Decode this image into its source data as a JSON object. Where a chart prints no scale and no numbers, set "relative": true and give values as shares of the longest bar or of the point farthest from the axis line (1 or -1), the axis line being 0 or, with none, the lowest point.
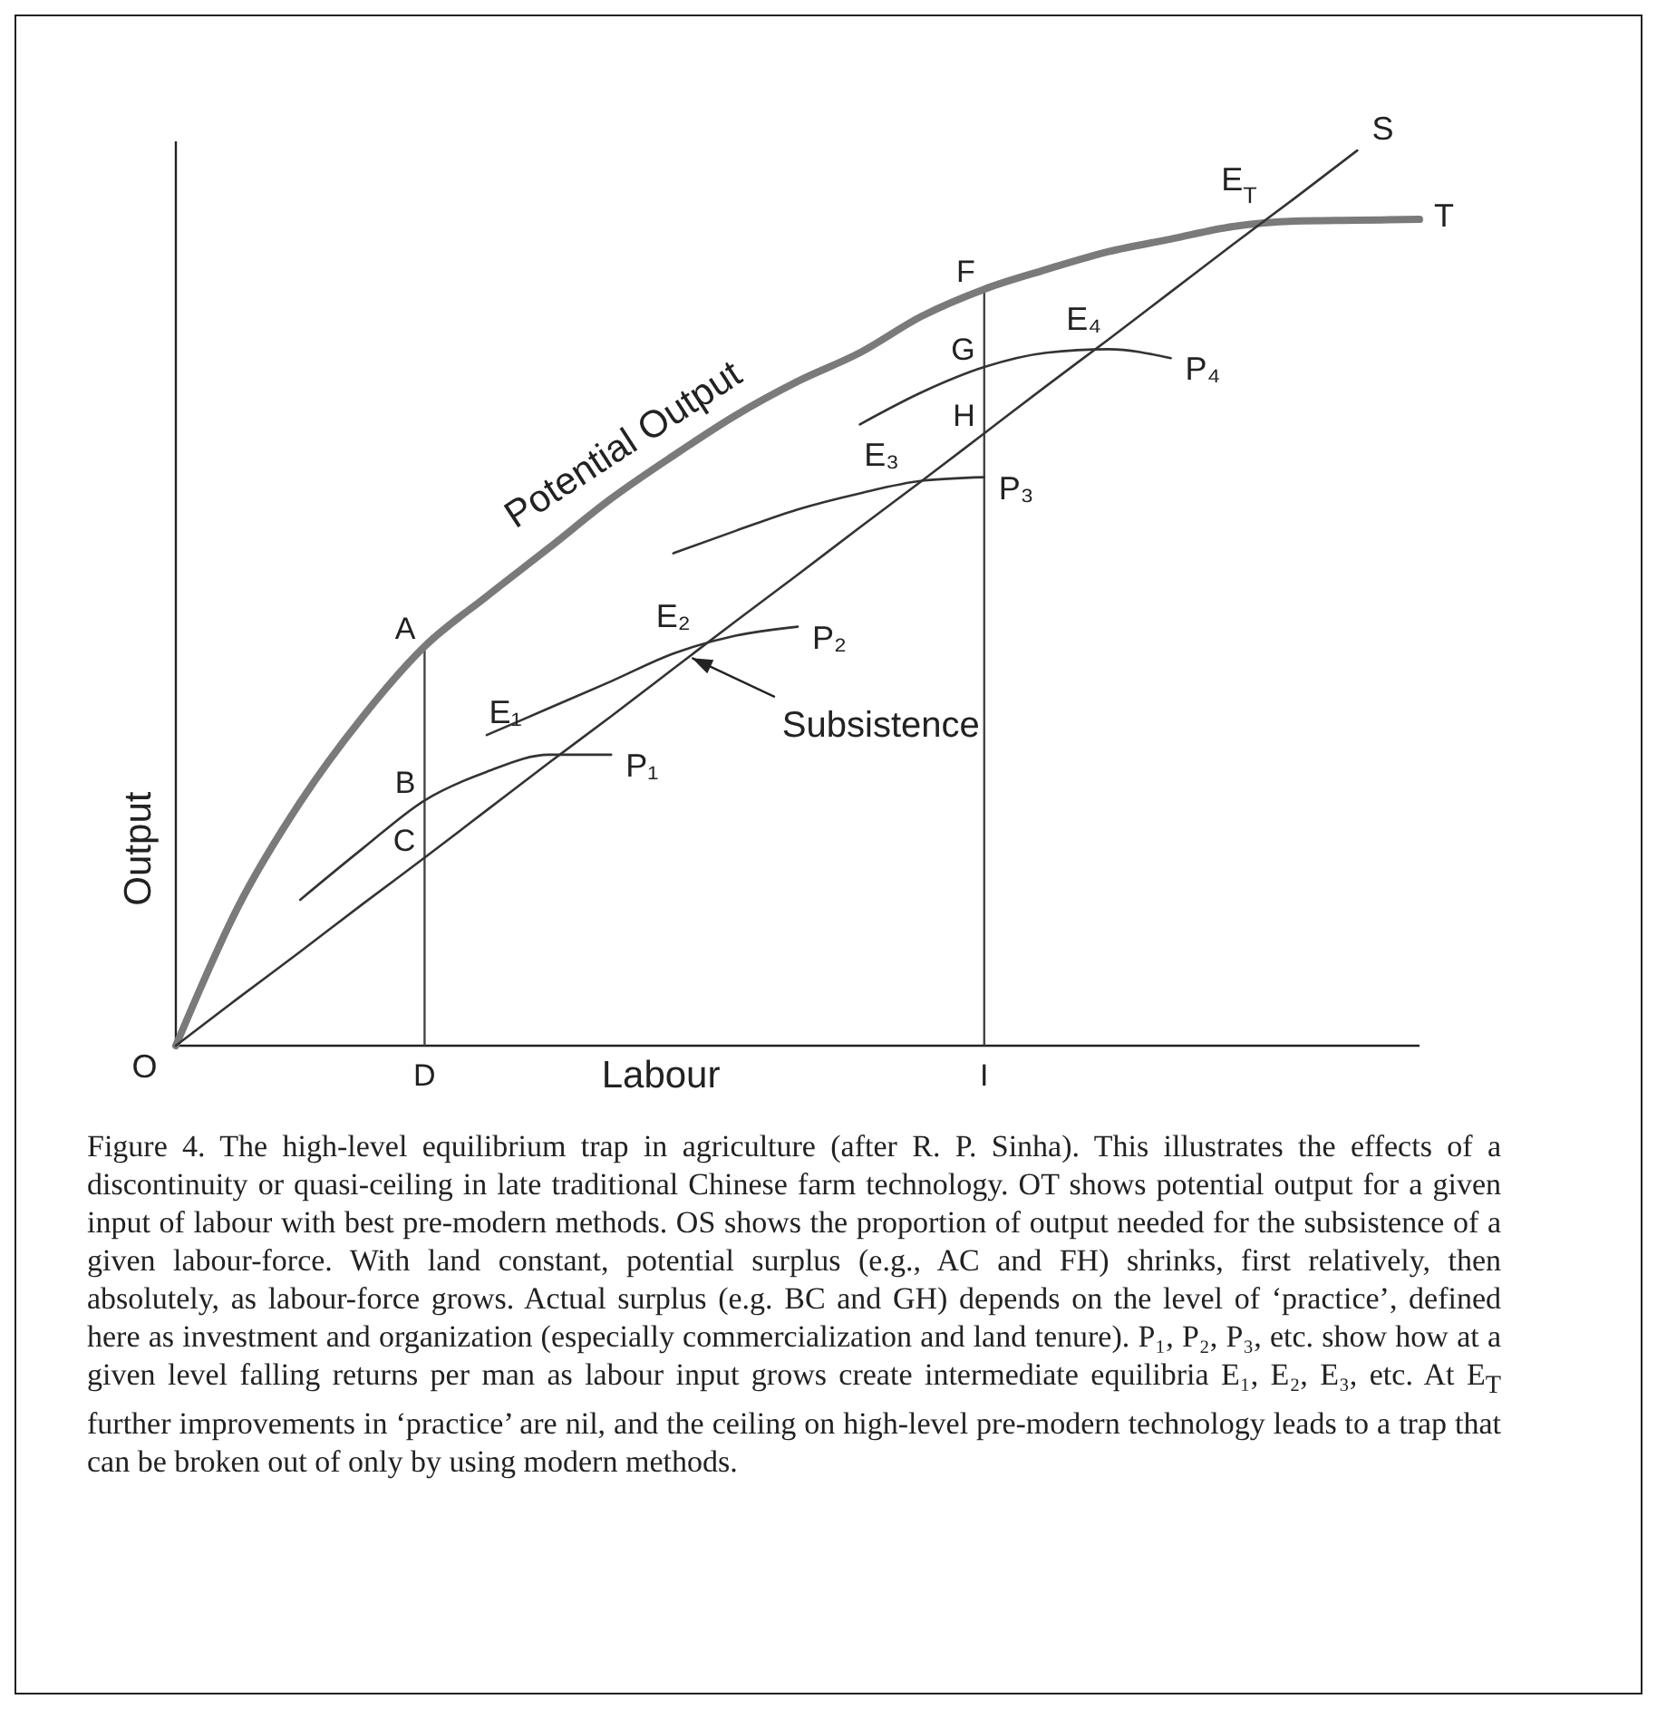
{
  "chart_data": {
    "type": "line",
    "relative": true,
    "xlabel": "Labour",
    "ylabel": "Output",
    "categories": [
      null,
      null,
      null,
      null,
      "D",
      null,
      null,
      null,
      null,
      null,
      null,
      null,
      null,
      "I",
      null,
      null,
      null,
      null,
      null,
      null,
      null
    ],
    "series": [
      {
        "name": "T",
        "color": "#7a7a7a",
        "values": [
          0,
          0.155,
          0.272,
          0.367,
          0.446,
          0.502,
          0.556,
          0.611,
          0.659,
          0.704,
          0.742,
          0.774,
          0.815,
          0.845,
          0.867,
          0.887,
          0.901,
          0.915,
          0.921,
          0.922,
          0.923
        ]
      },
      {
        "name": "S",
        "color": "#333333",
        "values": [
          0,
          0.053,
          0.105,
          0.158,
          0.21,
          0.263,
          0.316,
          0.368,
          0.421,
          0.474,
          0.526,
          0.579,
          0.631,
          0.684,
          0.737,
          0.789,
          0.842,
          0.895,
          0.947,
          1.0,
          null
        ]
      },
      {
        "name": "P₁",
        "color": "#333333",
        "values": [
          null,
          null,
          0.163,
          0.22,
          0.274,
          0.306,
          0.325,
          0.325,
          null,
          null,
          null,
          null,
          null,
          null,
          null,
          null,
          null,
          null,
          null,
          null,
          null
        ]
      },
      {
        "name": "P₂",
        "color": "#333333",
        "values": [
          null,
          null,
          null,
          null,
          null,
          0.347,
          0.377,
          0.407,
          0.438,
          0.458,
          0.468,
          null,
          null,
          null,
          null,
          null,
          null,
          null,
          null,
          null,
          null
        ]
      },
      {
        "name": "P₃",
        "color": "#333333",
        "values": [
          null,
          null,
          null,
          null,
          null,
          null,
          null,
          null,
          0.55,
          0.575,
          0.599,
          0.617,
          0.631,
          0.635,
          null,
          null,
          null,
          null,
          null,
          null,
          null
        ]
      },
      {
        "name": "P₄",
        "color": "#333333",
        "values": [
          null,
          null,
          null,
          null,
          null,
          null,
          null,
          null,
          null,
          null,
          null,
          0.694,
          0.73,
          0.758,
          0.774,
          0.778,
          0.768,
          null,
          null,
          null,
          null
        ]
      }
    ],
    "ref_lines": [
      {
        "axis": "x",
        "value": "D",
        "color": "#444444"
      },
      {
        "axis": "x",
        "value": "I",
        "color": "#444444"
      }
    ],
    "annotations": [
      {
        "text": "A",
        "x": "D",
        "y": 0.446
      },
      {
        "text": "B",
        "x": "D",
        "y": 0.274
      },
      {
        "text": "C",
        "x": "D",
        "y": 0.21
      },
      {
        "text": "F",
        "x": "I",
        "y": 0.845
      },
      {
        "text": "G",
        "x": "I",
        "y": 0.758
      },
      {
        "text": "H",
        "x": "I",
        "y": 0.684
      },
      "O",
      "E₁",
      "E₂",
      "E₃",
      "E₄",
      "E$_{T}$",
      "Potential Output",
      "Subsistence",
      "Figure 4. The high-level equilibrium trap in agriculture (after R. P. Sinha). This illustrates the effects of a discontinuity or quasi-ceiling in late traditional Chinese farm technology. OT shows potential output for a given input of labour with best pre-modern methods. OS shows the proportion of output needed for the subsistence of a given labour-force. With land constant, potential surplus (e.g., AC and FH) shrinks, first relatively, then absolutely, as labour-force grows. Actual surplus (e.g. BC and GH) depends on the level of ‘practice’, defined here as investment and organization (especially commercialization and land tenure). P₁, P₂, P₃, etc. show how at a given level falling returns per man as labour input grows create intermediate equilibria E₁, E₂, E₃, etc. At E$_{T}$ further improvements in ‘practice’ are nil, and the ceiling on high-level pre-modern technology leads to a trap that can be broken out of only by using modern methods."
    ]
  }
}
